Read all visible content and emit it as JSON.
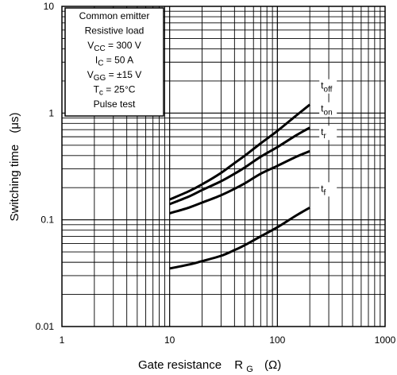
{
  "chart_data": {
    "type": "line",
    "scale": {
      "x": "log",
      "y": "log"
    },
    "xlim": [
      1,
      1000
    ],
    "ylim": [
      0.01,
      10
    ],
    "x_ticks": [
      "1",
      "10",
      "100",
      "1000"
    ],
    "y_ticks": [
      "0.01",
      "0.1",
      "1",
      "10"
    ],
    "xlabel": {
      "text": "Gate resistance",
      "symbol": "R",
      "sub": "G",
      "unit": "(Ω)"
    },
    "ylabel": {
      "text": "Switching time",
      "unit": "(μs)"
    },
    "grid": true,
    "conditions": [
      {
        "text": "Common emitter"
      },
      {
        "text": "Resistive load"
      },
      {
        "pre": "V",
        "sub": "CC",
        "post": " = 300 V"
      },
      {
        "pre": "I",
        "sub": "C",
        "post": " = 50 A"
      },
      {
        "pre": "V",
        "sub": "GG",
        "post": " = ±15 V"
      },
      {
        "pre": "T",
        "sub": "c",
        "post": " = 25°C"
      },
      {
        "text": "Pulse test"
      }
    ],
    "series": [
      {
        "name": "toff",
        "base": "t",
        "sub": "off",
        "x": [
          10,
          15,
          20,
          30,
          40,
          50,
          70,
          100,
          150,
          200
        ],
        "y": [
          0.155,
          0.185,
          0.215,
          0.275,
          0.34,
          0.4,
          0.52,
          0.68,
          0.95,
          1.2
        ]
      },
      {
        "name": "ton",
        "base": "t",
        "sub": "on",
        "x": [
          10,
          15,
          20,
          30,
          40,
          50,
          70,
          100,
          150,
          200
        ],
        "y": [
          0.14,
          0.165,
          0.19,
          0.23,
          0.27,
          0.31,
          0.39,
          0.48,
          0.62,
          0.73
        ]
      },
      {
        "name": "tr",
        "base": "t",
        "sub": "r",
        "x": [
          10,
          15,
          20,
          30,
          40,
          50,
          70,
          100,
          150,
          200
        ],
        "y": [
          0.115,
          0.13,
          0.145,
          0.17,
          0.195,
          0.22,
          0.27,
          0.32,
          0.39,
          0.44
        ]
      },
      {
        "name": "tf",
        "base": "t",
        "sub": "f",
        "x": [
          10,
          15,
          20,
          30,
          40,
          50,
          70,
          100,
          150,
          200
        ],
        "y": [
          0.035,
          0.038,
          0.041,
          0.046,
          0.052,
          0.058,
          0.07,
          0.085,
          0.11,
          0.13
        ]
      }
    ]
  }
}
